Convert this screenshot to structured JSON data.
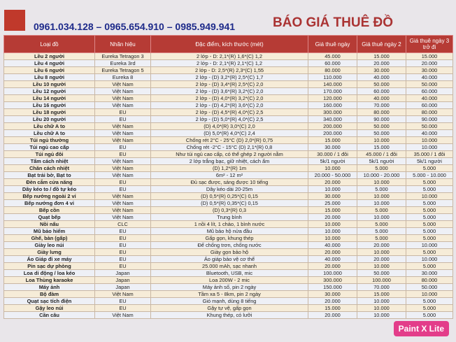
{
  "header": {
    "phone": "0961.034.128 – 0965.654.910 – 0985.949.941",
    "title": "BÁO GIÁ THUÊ ĐỒ"
  },
  "table": {
    "columns": [
      "Loại đồ",
      "Nhãn hiệu",
      "Đặc điểm, kích thước (mét)",
      "Giá thuê ngày",
      "Giá thuê ngày 2",
      "Giá thuê ngày 3 trở đi"
    ],
    "rows": [
      [
        "Lều 2 người",
        "Eureka Tetragon 3",
        "2 lớp - D: 2,1*(R) 1,6*(C) 1,2",
        "45.000",
        "15.000",
        "15.000"
      ],
      [
        "Lều 4 người",
        "Eureka 3rd",
        "2 lớp - D: 2,1*(R) 2,1*(C) 1,2",
        "60.000",
        "20.000",
        "20.000"
      ],
      [
        "Lều 6 người",
        "Eureka Tetragon 5",
        "2 lớp - D: 2,5*(R) 2,3*(C) 1,55",
        "80.000",
        "30.000",
        "30.000"
      ],
      [
        "Lều 8 người",
        "Eureka 8",
        "2 lớp - (D) 3,2*(R) 2,5*(C) 1,7",
        "110.000",
        "40.000",
        "40.000"
      ],
      [
        "Lều 10 người",
        "Việt Nam",
        "2 lớp - (D) 3,4*(R) 2,5*(C) 2,0",
        "140.000",
        "50.000",
        "50.000"
      ],
      [
        "Lều 12 người",
        "Việt Nam",
        "2 lớp - (D) 3,6*(R) 3,2*(C) 2,0",
        "170.000",
        "60.000",
        "60.000"
      ],
      [
        "Lều 14 người",
        "Việt Nam",
        "2 lớp - (D) 4,0*(R) 3,2*(C) 2,0",
        "120.000",
        "40.000",
        "40.000"
      ],
      [
        "Lều 16 người",
        "Việt Nam",
        "2 lớp - (D) 4,2*(R) 3,6*(C) 2,0",
        "160.000",
        "70.000",
        "60.000"
      ],
      [
        "Lều 18 người",
        "EU",
        "2 lớp - (D) 4,5*(R) 4,0*(C) 2,5",
        "300.000",
        "80.000",
        "80.000"
      ],
      [
        "Lều 20 người",
        "EU",
        "2 lớp - (D) 5,0*(R) 4,0*(C) 2,5",
        "340.000",
        "90.000",
        "90.000"
      ],
      [
        "Lều chữ A to",
        "Việt Nam",
        "(D) 4,0*(R) 3,0*(C) 2,0",
        "200.000",
        "50.000",
        "50.000"
      ],
      [
        "Lều chữ A to",
        "Việt Nam",
        "(D) 5,0*(R) 4,0*(C) 2,4",
        "200.000",
        "50.000",
        "40.000"
      ],
      [
        "Túi ngủ thường",
        "Việt Nam",
        "Chống rét 2°C - 25°C (D) 2,0*(R) 0,75",
        "15.000",
        "10.000",
        "10.000"
      ],
      [
        "Túi ngủ cao cấp",
        "EU",
        "Chống rét -2°C - 15°C (D) 2,1*(R) 0,8",
        "30.000",
        "15.000",
        "10.000"
      ],
      [
        "Túi ngủ đôi",
        "EU",
        "Như túi ngủ cao cấp, có thể ghép 2 người nằm",
        "30.000 / 1 đôi",
        "45.000 / 1 đôi",
        "35.000 / 1 đôi"
      ],
      [
        "Tấm cách nhiệt",
        "Việt Nam",
        "2 lớp trắng bạc, giữ nhiệt, cách ẩm",
        "5k/1 người",
        "5k/1 người",
        "5k/1 người"
      ],
      [
        "Chăn cách nhiệt",
        "Việt Nam",
        "(D) 1,2*(R) 1m",
        "10.000",
        "5.000",
        "5.000"
      ],
      [
        "Bạt trải bờ, Bạt to",
        "Việt Nam",
        "6m² - 12 m²",
        "20.000 - 50.000",
        "10.000 - 20.000",
        "5.000 - 10.000"
      ],
      [
        "Đèn cắm cửa năng",
        "EU",
        "Đủ sạc được, sáng được 10 tiếng",
        "20.000",
        "10.000",
        "5.000"
      ],
      [
        "Dây kéo to / đồ tự kéo",
        "EU",
        "Dây kéo dài 20-25m",
        "10.000",
        "5.000",
        "5.000"
      ],
      [
        "Bếp nướng ngoài 2 vỉ",
        "Việt Nam",
        "(D) 0,5*(R) 0,25*(C) 0,15",
        "30.000",
        "10.000",
        "10.000"
      ],
      [
        "Bếp nướng đơn 4 vỉ",
        "Việt Nam",
        "(D) 0,5*(R) 0,35*(C) 0,15",
        "25.000",
        "10.000",
        "5.000"
      ],
      [
        "Bếp cồn",
        "Việt Nam",
        "(D) 0,3*(R) 0,3",
        "15.000",
        "5.000",
        "5.000"
      ],
      [
        "Quạt bếp",
        "Việt Nam",
        "Trung bình",
        "20.000",
        "10.000",
        "5.000"
      ],
      [
        "Nồi nấu",
        "CLC",
        "1 nồi 4 lít, 1 chảo, 1 bình nước",
        "10.000",
        "5.000",
        "5.000"
      ],
      [
        "Mũ bảo hiểm",
        "EU",
        "Mũ bảo hộ nửa đầu",
        "10.000",
        "5.000",
        "5.000"
      ],
      [
        "Ghế, bàn (gấp)",
        "EU",
        "Gấp gọn, khung thép",
        "10.000",
        "5.000",
        "5.000"
      ],
      [
        "Giày leo núi",
        "EU",
        "Đế chống trơn, chống nước",
        "40.000",
        "20.000",
        "10.000"
      ],
      [
        "Giày lưng",
        "EU",
        "Giày gọn bảo hộ",
        "20.000",
        "10.000",
        "5.000"
      ],
      [
        "Áo Giáp đi xe máy",
        "EU",
        "Áo giáp bảo vệ cơ thể",
        "40.000",
        "20.000",
        "10.000"
      ],
      [
        "Pin sạc dự phòng",
        "EU",
        "25.000 mAh, sạc nhanh",
        "20.000",
        "10.000",
        "5.000"
      ],
      [
        "Loa di động / loa kéo",
        "Japan",
        "Bluetooth, USB, mic",
        "100.000",
        "50.000",
        "30.000"
      ],
      [
        "Loa Thùng karaoke",
        "Japan",
        "Loa 200W - 2 mic",
        "300.000",
        "100.000",
        "80.000"
      ],
      [
        "Máy ảnh",
        "Japan",
        "Máy ảnh số, pin 2 ngày",
        "150.000",
        "70.000",
        "50.000"
      ],
      [
        "Bộ đàm",
        "Việt Nam",
        "Tầm xa 5 - 8km, pin 2 ngày",
        "30.000",
        "15.000",
        "10.000"
      ],
      [
        "Quạt sạc tích điện",
        "EU",
        "Gió mạnh, dùng 8 tiếng",
        "20.000",
        "10.000",
        "5.000"
      ],
      [
        "Gậy leo núi",
        "EU",
        "Gậy tự vệ, gấp gọn",
        "15.000",
        "10.000",
        "5.000"
      ],
      [
        "Cần câu",
        "Việt Nam",
        "Khung thép, có lưỡi",
        "20.000",
        "10.000",
        "5.000"
      ]
    ]
  },
  "watermark": "Paint X Lite"
}
